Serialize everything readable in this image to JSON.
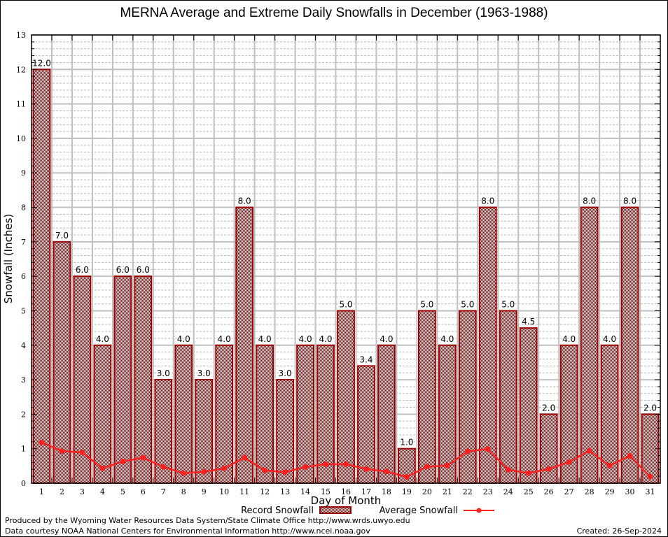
{
  "chart_data": {
    "type": "bar",
    "title": "MERNA Average and Extreme Daily Snowfalls in December (1963-1988)",
    "xlabel": "Day of Month",
    "ylabel": "Snowfall (Inches)",
    "ylim": [
      0,
      13
    ],
    "yticks": [
      0,
      1,
      2,
      3,
      4,
      5,
      6,
      7,
      8,
      9,
      10,
      11,
      12,
      13
    ],
    "grid": true,
    "categories": [
      "1",
      "2",
      "3",
      "4",
      "5",
      "6",
      "7",
      "8",
      "9",
      "10",
      "11",
      "12",
      "13",
      "14",
      "15",
      "16",
      "17",
      "18",
      "19",
      "20",
      "21",
      "22",
      "23",
      "24",
      "25",
      "26",
      "27",
      "28",
      "29",
      "30",
      "31"
    ],
    "series": [
      {
        "name": "Record Snowfall",
        "kind": "bar",
        "color": "#990000",
        "values": [
          12.0,
          7.0,
          6.0,
          4.0,
          6.0,
          6.0,
          3.0,
          4.0,
          3.0,
          4.0,
          8.0,
          4.0,
          3.0,
          4.0,
          4.0,
          5.0,
          3.4,
          4.0,
          1.0,
          5.0,
          4.0,
          5.0,
          8.0,
          5.0,
          4.5,
          2.0,
          4.0,
          8.0,
          4.0,
          8.0,
          2.0
        ],
        "labels": [
          "12.0",
          "7.0",
          "6.0",
          "4.0",
          "6.0",
          "6.0",
          "3.0",
          "4.0",
          "3.0",
          "4.0",
          "8.0",
          "4.0",
          "3.0",
          "4.0",
          "4.0",
          "5.0",
          "3.4",
          "4.0",
          "1.0",
          "5.0",
          "4.0",
          "5.0",
          "8.0",
          "5.0",
          "4.5",
          "2.0",
          "4.0",
          "8.0",
          "4.0",
          "8.0",
          "2.0"
        ]
      },
      {
        "name": "Average Snowfall",
        "kind": "line",
        "color": "#ff2020",
        "values": [
          1.18,
          0.93,
          0.89,
          0.43,
          0.63,
          0.74,
          0.47,
          0.29,
          0.33,
          0.43,
          0.74,
          0.37,
          0.32,
          0.47,
          0.55,
          0.55,
          0.41,
          0.34,
          0.18,
          0.48,
          0.51,
          0.92,
          0.99,
          0.39,
          0.29,
          0.41,
          0.61,
          0.94,
          0.51,
          0.79,
          0.19
        ]
      }
    ],
    "legend": {
      "placement": "bottom-center",
      "entries": [
        "Record Snowfall",
        "Average Snowfall"
      ]
    }
  },
  "footer": {
    "produced_by": "Produced by the Wyoming Water Resources Data System/State Climate Office http://www.wrds.uwyo.edu",
    "data_courtesy": "Data courtesy NOAA National Centers for Environmental Information http://www.ncei.noaa.gov",
    "created": "Created:  26-Sep-2024"
  }
}
